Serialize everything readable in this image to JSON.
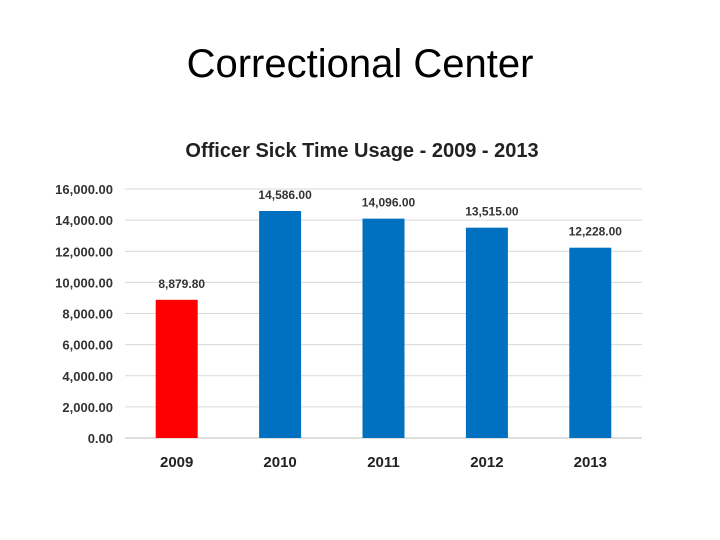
{
  "slide": {
    "title": "Correctional Center"
  },
  "chart_data": {
    "type": "bar",
    "title": "Officer Sick Time Usage - 2009 - 2013",
    "xlabel": "",
    "ylabel": "",
    "categories": [
      "2009",
      "2010",
      "2011",
      "2012",
      "2013"
    ],
    "values": [
      8879.8,
      14586.0,
      14096.0,
      13515.0,
      12228.0
    ],
    "data_labels": [
      "8,879.80",
      "14,586.00",
      "14,096.00",
      "13,515.00",
      "12,228.00"
    ],
    "bar_colors": [
      "#ff0000",
      "#0070c0",
      "#0070c0",
      "#0070c0",
      "#0070c0"
    ],
    "ylim": [
      0,
      16000
    ],
    "ytick_step": 2000,
    "ytick_labels": [
      "0.00",
      "2,000.00",
      "4,000.00",
      "6,000.00",
      "8,000.00",
      "10,000.00",
      "12,000.00",
      "14,000.00",
      "16,000.00"
    ],
    "grid": true,
    "legend": "none"
  }
}
